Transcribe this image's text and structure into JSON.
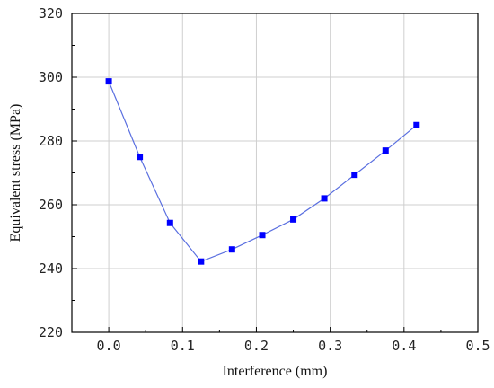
{
  "chart_data": {
    "type": "line",
    "title": "",
    "xlabel": "Interference (mm)",
    "ylabel": "Equivalent stress (MPa)",
    "xlim": [
      -0.05,
      0.5
    ],
    "ylim": [
      220,
      320
    ],
    "x_ticks": [
      0.0,
      0.1,
      0.2,
      0.3,
      0.4,
      0.5
    ],
    "x_tick_labels": [
      "0.0",
      "0.1",
      "0.2",
      "0.3",
      "0.4",
      "0.5"
    ],
    "y_ticks": [
      220,
      240,
      260,
      280,
      300,
      320
    ],
    "y_tick_labels": [
      "220",
      "240",
      "260",
      "280",
      "300",
      "320"
    ],
    "grid": true,
    "legend": "none",
    "series": [
      {
        "marker": "square",
        "color": "#0000ff",
        "line_color": "#5a6fe0",
        "x": [
          0.0,
          0.042,
          0.083,
          0.125,
          0.167,
          0.208,
          0.25,
          0.292,
          0.333,
          0.375,
          0.417
        ],
        "y": [
          298.7,
          275.0,
          254.3,
          242.2,
          246.0,
          250.5,
          255.4,
          262.0,
          269.4,
          277.0,
          285.0
        ]
      }
    ]
  }
}
